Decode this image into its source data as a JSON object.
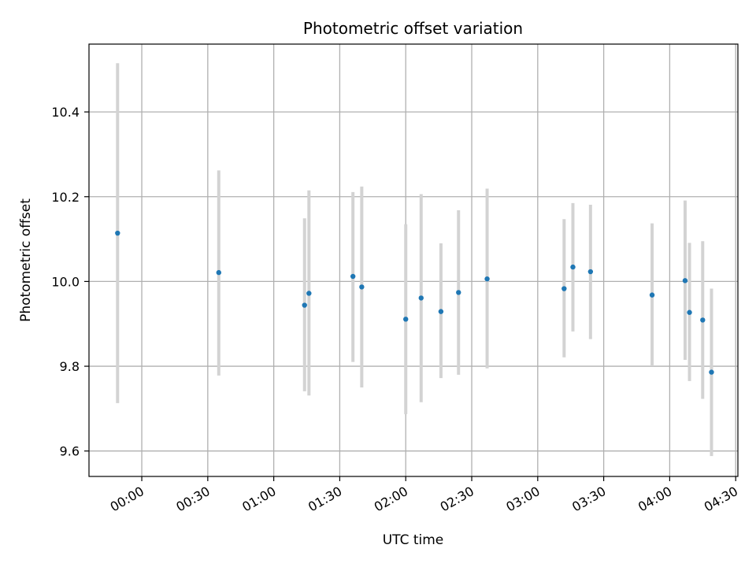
{
  "chart_data": {
    "type": "scatter",
    "title": "Photometric offset variation",
    "xlabel": "UTC time",
    "ylabel": "Photometric offset",
    "x_axis_type": "time",
    "xlim": [
      "23:36",
      "04:31"
    ],
    "ylim": [
      9.54,
      10.56
    ],
    "x_ticks": [
      "00:00",
      "00:30",
      "01:00",
      "01:30",
      "02:00",
      "02:30",
      "03:00",
      "03:30",
      "04:00",
      "04:30"
    ],
    "y_ticks": [
      "9.6",
      "9.8",
      "10.0",
      "10.2",
      "10.4"
    ],
    "grid": true,
    "point_color": "#1f77b4",
    "errorbar_color": "#d3d3d3",
    "grid_color": "#b0b0b0",
    "points": [
      {
        "time": "23:49",
        "value": 10.114,
        "low": 9.713,
        "high": 10.515
      },
      {
        "time": "00:35",
        "value": 10.021,
        "low": 9.778,
        "high": 10.262
      },
      {
        "time": "01:14",
        "value": 9.944,
        "low": 9.741,
        "high": 10.149
      },
      {
        "time": "01:16",
        "value": 9.972,
        "low": 9.731,
        "high": 10.215
      },
      {
        "time": "01:36",
        "value": 10.012,
        "low": 9.81,
        "high": 10.211
      },
      {
        "time": "01:40",
        "value": 9.987,
        "low": 9.75,
        "high": 10.224
      },
      {
        "time": "02:00",
        "value": 9.911,
        "low": 9.687,
        "high": 10.135
      },
      {
        "time": "02:07",
        "value": 9.961,
        "low": 9.715,
        "high": 10.206
      },
      {
        "time": "02:16",
        "value": 9.929,
        "low": 9.772,
        "high": 10.09
      },
      {
        "time": "02:24",
        "value": 9.974,
        "low": 9.78,
        "high": 10.168
      },
      {
        "time": "02:37",
        "value": 10.006,
        "low": 9.795,
        "high": 10.219
      },
      {
        "time": "03:12",
        "value": 9.983,
        "low": 9.821,
        "high": 10.147
      },
      {
        "time": "03:16",
        "value": 10.034,
        "low": 9.882,
        "high": 10.185
      },
      {
        "time": "03:24",
        "value": 10.023,
        "low": 9.864,
        "high": 10.181
      },
      {
        "time": "03:52",
        "value": 9.968,
        "low": 9.8,
        "high": 10.137
      },
      {
        "time": "04:07",
        "value": 10.002,
        "low": 9.815,
        "high": 10.191
      },
      {
        "time": "04:09",
        "value": 9.927,
        "low": 9.765,
        "high": 10.091
      },
      {
        "time": "04:15",
        "value": 9.909,
        "low": 9.723,
        "high": 10.095
      },
      {
        "time": "04:19",
        "value": 9.786,
        "low": 9.588,
        "high": 9.983
      }
    ]
  }
}
